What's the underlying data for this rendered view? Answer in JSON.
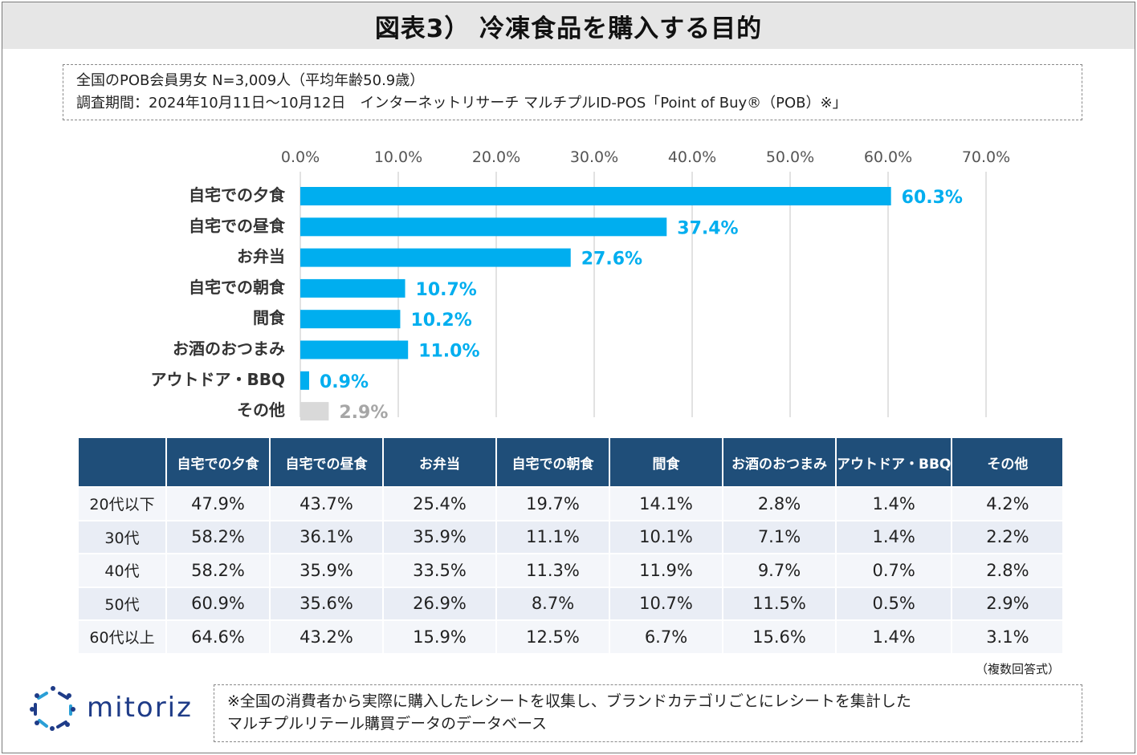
{
  "title": "図表3） 冷凍食品を購入する目的",
  "info": {
    "line1": "全国のPOB会員男女 N=3,009人（平均年齢50.9歳）",
    "line2": "調査期間：2024年10月11日～10月12日　インターネットリサーチ マルチプルID-POS「Point of Buy®（POB）※」"
  },
  "chart_data": {
    "type": "bar",
    "orientation": "horizontal",
    "categories": [
      "自宅での夕食",
      "自宅での昼食",
      "お弁当",
      "自宅での朝食",
      "間食",
      "お酒のおつまみ",
      "アウトドア・BBQ",
      "その他"
    ],
    "values": [
      60.3,
      37.4,
      27.6,
      10.7,
      10.2,
      11.0,
      0.9,
      2.9
    ],
    "value_labels": [
      "60.3%",
      "37.4%",
      "27.6%",
      "10.7%",
      "10.2%",
      "11.0%",
      "0.9%",
      "2.9%"
    ],
    "xlim": [
      0,
      70
    ],
    "ticks": [
      "0.0%",
      "10.0%",
      "20.0%",
      "30.0%",
      "40.0%",
      "50.0%",
      "60.0%",
      "70.0%"
    ],
    "grid": true,
    "colors": {
      "main": "#00aeef",
      "other": "#d9d9d9",
      "other_label": "#a6a6a6"
    }
  },
  "table": {
    "headers": [
      "",
      "自宅での夕食",
      "自宅での昼食",
      "お弁当",
      "自宅での朝食",
      "間食",
      "お酒のおつまみ",
      "アウトドア・BBQ",
      "その他"
    ],
    "rows": [
      [
        "20代以下",
        "47.9%",
        "43.7%",
        "25.4%",
        "19.7%",
        "14.1%",
        "2.8%",
        "1.4%",
        "4.2%"
      ],
      [
        "30代",
        "58.2%",
        "36.1%",
        "35.9%",
        "11.1%",
        "10.1%",
        "7.1%",
        "1.4%",
        "2.2%"
      ],
      [
        "40代",
        "58.2%",
        "35.9%",
        "33.5%",
        "11.3%",
        "11.9%",
        "9.7%",
        "0.7%",
        "2.8%"
      ],
      [
        "50代",
        "60.9%",
        "35.6%",
        "26.9%",
        "8.7%",
        "10.7%",
        "11.5%",
        "0.5%",
        "2.9%"
      ],
      [
        "60代以上",
        "64.6%",
        "43.2%",
        "15.9%",
        "12.5%",
        "6.7%",
        "15.6%",
        "1.4%",
        "3.1%"
      ]
    ]
  },
  "note_multiple": "（複数回答式）",
  "logo_text": "mitoriz",
  "footnote": {
    "line1": "※全国の消費者から実際に購入したレシートを収集し、ブランドカテゴリごとにレシートを集計した",
    "line2": "マルチプルリテール購買データのデータベース"
  }
}
